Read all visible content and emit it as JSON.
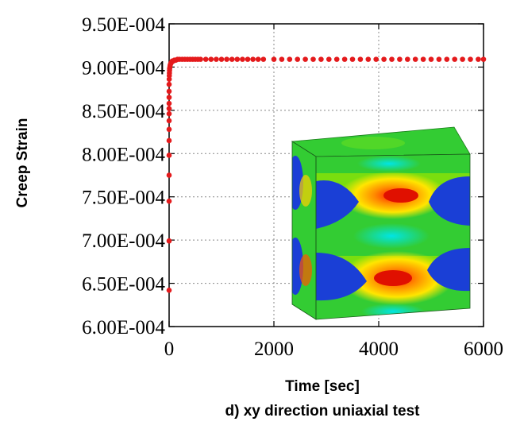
{
  "chart_data": {
    "type": "scatter",
    "title": "",
    "caption": "d) xy direction uniaxial test",
    "xlabel": "Time [sec]",
    "ylabel": "Creep Strain",
    "xlim": [
      0,
      6000
    ],
    "ylim": [
      0.0006,
      0.00095
    ],
    "x_ticks": [
      0,
      2000,
      4000,
      6000
    ],
    "x_tick_labels": [
      "0",
      "2000",
      "4000",
      "6000"
    ],
    "y_ticks": [
      0.0006,
      0.00065,
      0.0007,
      0.00075,
      0.0008,
      0.00085,
      0.0009,
      0.00095
    ],
    "y_tick_labels": [
      "6.00E-004",
      "6.50E-004",
      "7.00E-004",
      "7.50E-004",
      "8.00E-004",
      "8.50E-004",
      "9.00E-004",
      "9.50E-004"
    ],
    "grid": true,
    "marker_color": "#e41a1c",
    "inset": "deformed unit cell contour plot",
    "series": [
      {
        "values_x": [
          0,
          0,
          0,
          0,
          0,
          0,
          0,
          0,
          0,
          0,
          0,
          0,
          0,
          0,
          2,
          4,
          6,
          8,
          10,
          15,
          20,
          30,
          40,
          50,
          60,
          80,
          100,
          130,
          160,
          200,
          250,
          300,
          350,
          400,
          450,
          500,
          550,
          600,
          700,
          800,
          900,
          1000,
          1100,
          1200,
          1300,
          1400,
          1500,
          1600,
          1700,
          1800,
          2000,
          2150,
          2300,
          2450,
          2600,
          2750,
          2900,
          3050,
          3200,
          3350,
          3500,
          3650,
          3800,
          3950,
          4100,
          4250,
          4400,
          4550,
          4700,
          4850,
          5000,
          5150,
          5300,
          5450,
          5600,
          5750,
          5900,
          6000
        ],
        "values_y": [
          0.000642,
          0.000699,
          0.000745,
          0.000775,
          0.000798,
          0.000815,
          0.000828,
          0.000838,
          0.000846,
          0.000852,
          0.000858,
          0.000865,
          0.000872,
          0.00088,
          0.000886,
          0.00089,
          0.000893,
          0.000896,
          0.000898,
          0.0009,
          0.000902,
          0.000904,
          0.000905,
          0.000906,
          0.000907,
          0.000907,
          0.000908,
          0.000908,
          0.000909,
          0.000909,
          0.000909,
          0.000909,
          0.000909,
          0.000909,
          0.000909,
          0.000909,
          0.000909,
          0.000909,
          0.000909,
          0.000909,
          0.000909,
          0.000909,
          0.000909,
          0.000909,
          0.000909,
          0.000909,
          0.000909,
          0.000909,
          0.000909,
          0.000909,
          0.000909,
          0.000909,
          0.000909,
          0.000909,
          0.000909,
          0.000909,
          0.000909,
          0.000909,
          0.000909,
          0.000909,
          0.000909,
          0.000909,
          0.000909,
          0.000909,
          0.000909,
          0.000909,
          0.000909,
          0.000909,
          0.000909,
          0.000909,
          0.000909,
          0.000909,
          0.000909,
          0.000909,
          0.000909,
          0.000909,
          0.000909,
          0.000909
        ]
      }
    ]
  }
}
